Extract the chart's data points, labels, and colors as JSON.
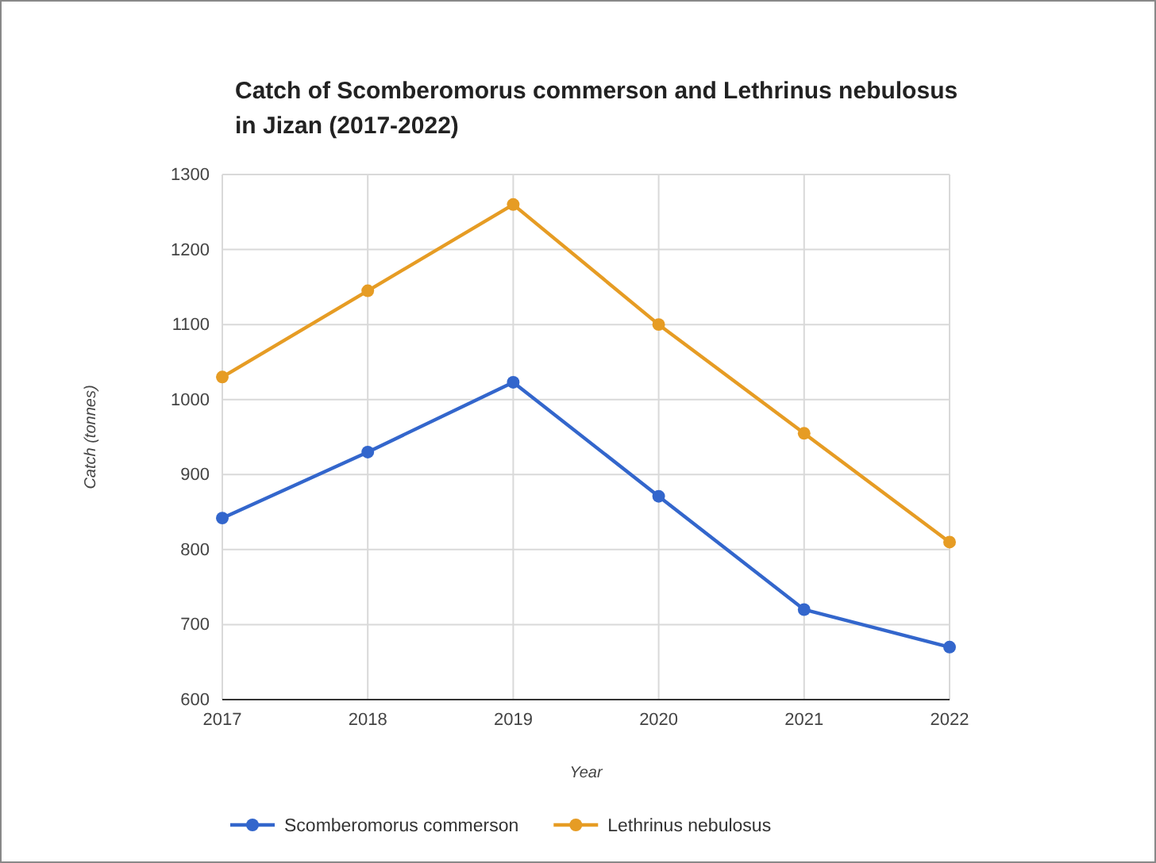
{
  "chart_data": {
    "type": "line",
    "title": "Catch of Scomberomorus commerson and Lethrinus nebulosus in Jizan (2017-2022)",
    "xlabel": "Year",
    "ylabel": "Catch (tonnes)",
    "x": [
      2017,
      2018,
      2019,
      2020,
      2021,
      2022
    ],
    "series": [
      {
        "name": "Scomberomorus commerson",
        "color": "#3366cc",
        "values": [
          842,
          930,
          1023,
          871,
          720,
          670
        ]
      },
      {
        "name": "Lethrinus nebulosus",
        "color": "#e69c24",
        "values": [
          1030,
          1145,
          1260,
          1100,
          955,
          810
        ]
      }
    ],
    "xlim": [
      2017,
      2022
    ],
    "xticks": [
      2017,
      2018,
      2019,
      2020,
      2021,
      2022
    ],
    "ylim": [
      600,
      1300
    ],
    "yticks": [
      600,
      700,
      800,
      900,
      1000,
      1100,
      1200,
      1300
    ],
    "grid": true,
    "legend": "bottom",
    "marker": "circle",
    "line_style": "solid"
  }
}
